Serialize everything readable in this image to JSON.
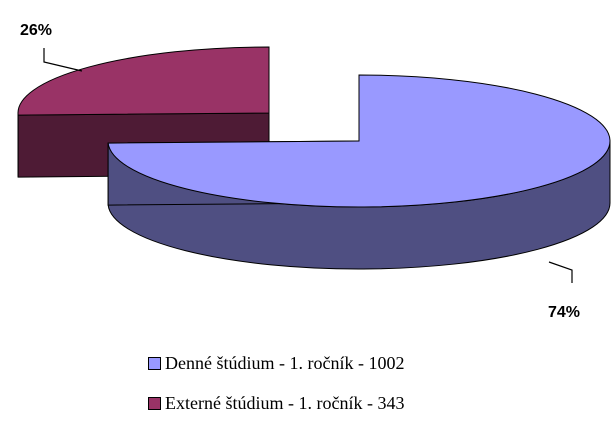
{
  "chart_data": {
    "type": "pie",
    "style": "3d-exploded",
    "slices": [
      {
        "name": "Denné štúdium - 1. ročník - 1002",
        "value": 1002,
        "label": "74%",
        "color": "#9999ff",
        "side_color": "#4f4f82"
      },
      {
        "name": "Externé štúdium - 1. ročník - 343",
        "value": 343,
        "label": "26%",
        "color": "#993366",
        "side_color": "#4e1b35"
      }
    ],
    "legend_position": "bottom"
  }
}
